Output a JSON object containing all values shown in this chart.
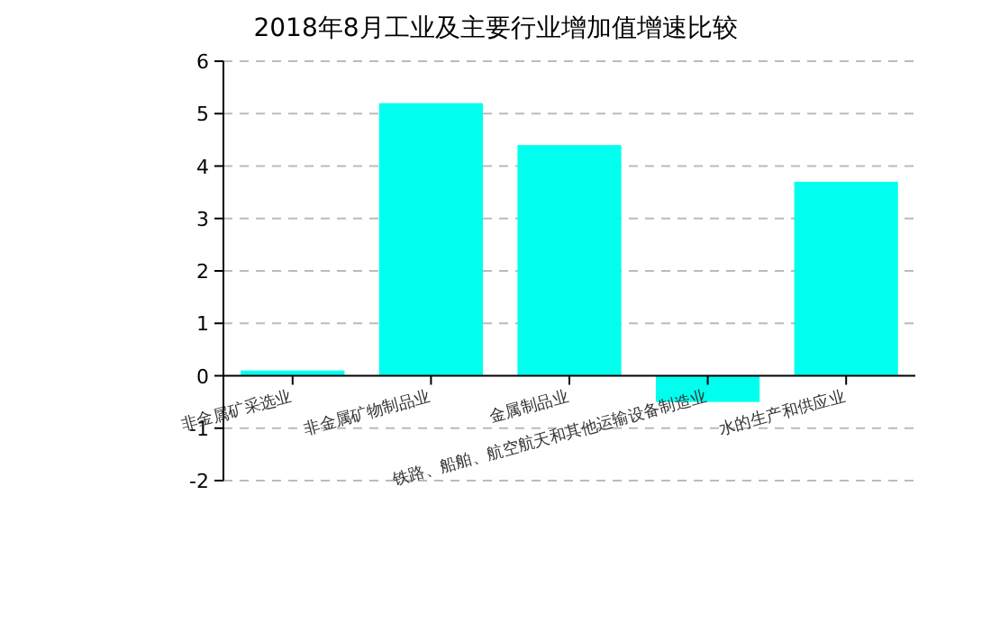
{
  "chart_data": {
    "type": "bar",
    "title": "2018年8月工业及主要行业增加值增速比较",
    "categories": [
      "非金属矿采选业",
      "非金属矿物制品业",
      "金属制品业",
      "铁路、船舶、航空航天和其他运输设备制造业",
      "水的生产和供应业"
    ],
    "values": [
      0.1,
      5.2,
      4.4,
      -0.5,
      3.7
    ],
    "color": "#00ffee",
    "ylim": [
      -2,
      6
    ],
    "yticks": [
      -2,
      -1,
      0,
      1,
      2,
      3,
      4,
      5,
      6
    ],
    "grid": "y"
  }
}
